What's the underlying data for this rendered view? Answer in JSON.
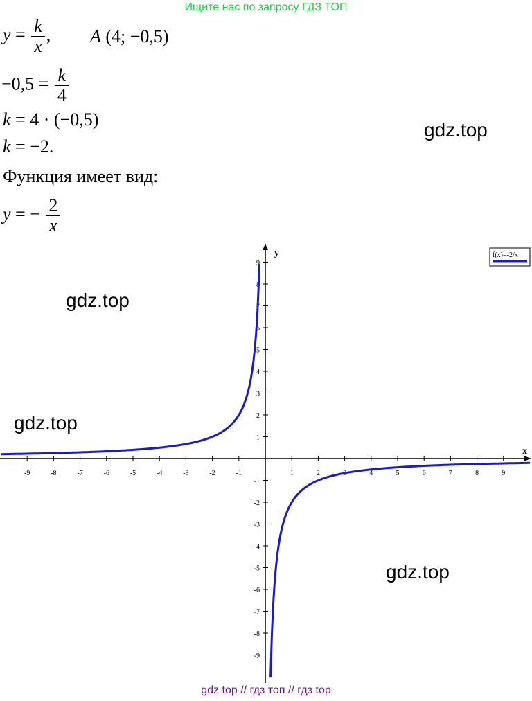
{
  "banner": {
    "text": "Ищите нас по запросу ГДЗ ТОП",
    "color": "#22cc44"
  },
  "solution": {
    "given_y": "y",
    "given_eq": "=",
    "given_num": "k",
    "given_den": "x",
    "given_comma": ",",
    "point_label": "A",
    "point_coords": "(4;  −0,5)",
    "step1_left": "−0,5 =",
    "step1_num": "k",
    "step1_den": "4",
    "step2_var": "k",
    "step2_rest": "= 4 · (−0,5)",
    "step3_var": "k",
    "step3_rest": "= −2.",
    "conclusion": "Функция имеет вид:",
    "final_y": "y",
    "final_eq": "= −",
    "final_num": "2",
    "final_den": "x"
  },
  "watermarks": [
    "gdz.top",
    "gdz.top",
    "gdz.top",
    "gdz.top"
  ],
  "graph": {
    "legend": "f(x)=-2/x",
    "x_axis_label": "x",
    "y_axis_label": "y",
    "curve_color": "#1a1acc"
  },
  "chart_data": {
    "type": "line",
    "function": "f(x)=-2/x",
    "k": -2,
    "point": {
      "x": 4,
      "y": -0.5
    },
    "xlim": [
      -10,
      10
    ],
    "ylim": [
      -10,
      10
    ],
    "x_ticks": [
      -9,
      -8,
      -7,
      -6,
      -5,
      -4,
      -3,
      -2,
      -1,
      1,
      2,
      3,
      4,
      5,
      6,
      7,
      8,
      9
    ],
    "y_ticks": [
      -9,
      -8,
      -7,
      -6,
      -5,
      -4,
      -3,
      -2,
      -1,
      1,
      2,
      3,
      4,
      5,
      6,
      7,
      8,
      9
    ],
    "xlabel": "x",
    "ylabel": "y",
    "legend": "f(x)=-2/x"
  },
  "footer": {
    "text": "gdz top  //  гдз топ  //  гдз top",
    "color": "#6a1b9a"
  }
}
